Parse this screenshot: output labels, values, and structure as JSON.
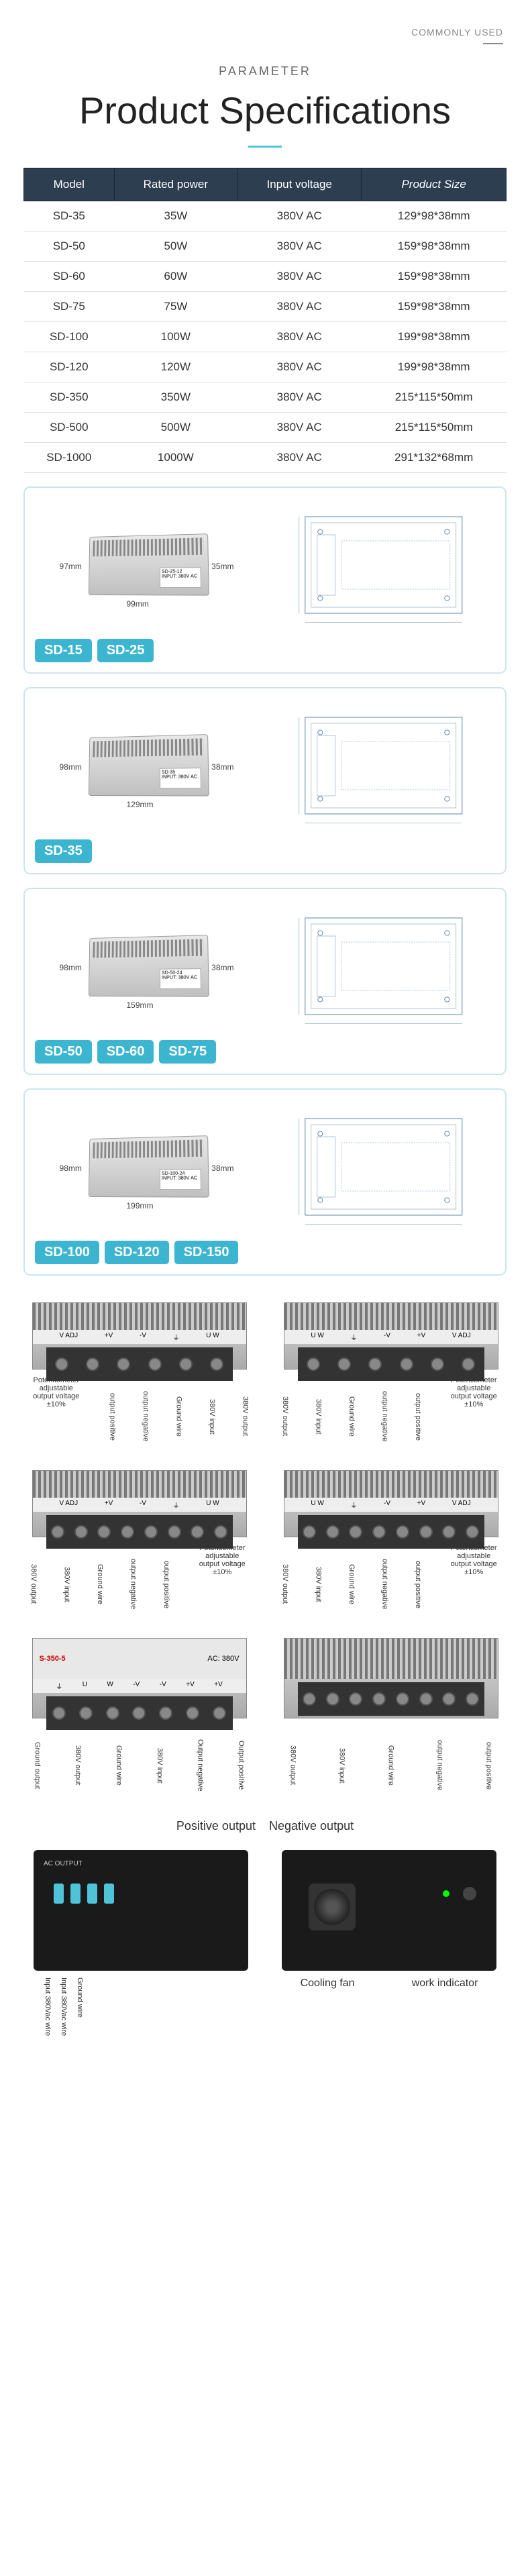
{
  "header": {
    "commonly_used": "COMMONLY USED",
    "parameter": "PARAMETER",
    "title": "Product Specifications"
  },
  "table": {
    "columns": [
      "Model",
      "Rated power",
      "Input voltage",
      "Product Size"
    ],
    "rows": [
      [
        "SD-35",
        "35W",
        "380V AC",
        "129*98*38mm"
      ],
      [
        "SD-50",
        "50W",
        "380V AC",
        "159*98*38mm"
      ],
      [
        "SD-60",
        "60W",
        "380V AC",
        "159*98*38mm"
      ],
      [
        "SD-75",
        "75W",
        "380V AC",
        "159*98*38mm"
      ],
      [
        "SD-100",
        "100W",
        "380V AC",
        "199*98*38mm"
      ],
      [
        "SD-120",
        "120W",
        "380V AC",
        "199*98*38mm"
      ],
      [
        "SD-350",
        "350W",
        "380V AC",
        "215*115*50mm"
      ],
      [
        "SD-500",
        "500W",
        "380V AC",
        "215*115*50mm"
      ],
      [
        "SD-1000",
        "1000W",
        "380V AC",
        "291*132*68mm"
      ]
    ]
  },
  "cards": [
    {
      "badges": [
        "SD-15",
        "SD-25"
      ],
      "width": "97mm",
      "length": "99mm",
      "height": "35mm",
      "psu_label_title": "SD-25-12",
      "psu_label_input": "INPUT: 380V AC"
    },
    {
      "badges": [
        "SD-35"
      ],
      "width": "98mm",
      "length": "129mm",
      "height": "38mm",
      "psu_label_title": "SD-35",
      "psu_label_input": "INPUT: 380V AC"
    },
    {
      "badges": [
        "SD-50",
        "SD-60",
        "SD-75"
      ],
      "width": "98mm",
      "length": "159mm",
      "height": "38mm",
      "psu_label_title": "SD-50-24",
      "psu_label_input": "INPUT: 380V AC"
    },
    {
      "badges": [
        "SD-100",
        "SD-120",
        "SD-150"
      ],
      "width": "98mm",
      "length": "199mm",
      "height": "38mm",
      "psu_label_title": "SD-100-24",
      "psu_label_input": "INPUT: 380V AC"
    }
  ],
  "terminal_labels_a": [
    "V ADJ",
    "+V",
    "-V",
    "⏚",
    "U W"
  ],
  "terminal_labels_b": [
    "U W",
    "⏚",
    "-V",
    "+V",
    "V ADJ"
  ],
  "callouts": {
    "pot": "Potentiometer adjustable output voltage ±10%",
    "out_pos": "output positive",
    "out_neg": "output negative",
    "ground": "Ground wire",
    "input_380": "380V input",
    "output_380": "380V output",
    "ground_output": "Ground output",
    "output_positive": "Output positive",
    "output_negative": "Output negative",
    "ground_wire": "Ground wire",
    "input_380v": "380V input",
    "ac_380v_wire": "Input 380Vac wire"
  },
  "s350_label": "S-350-5",
  "ac_380v": "AC: 380V",
  "ac_output": "AC OUTPUT",
  "pos_neg": {
    "pos": "Positive output",
    "neg": "Negative output"
  },
  "bottom": {
    "fan": "Cooling fan",
    "indicator": "work indicator"
  },
  "colors": {
    "accent": "#3bb5d0",
    "header_bg": "#2c3e50",
    "border": "#cce5ed"
  }
}
